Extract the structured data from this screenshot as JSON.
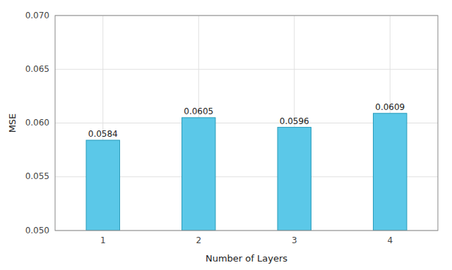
{
  "chart_data": {
    "type": "bar",
    "xlabel": "Number of Layers",
    "ylabel": "MSE",
    "categories": [
      1,
      2,
      3,
      4
    ],
    "values": [
      0.0584,
      0.0605,
      0.0596,
      0.0609
    ],
    "color": "#5BC8E8",
    "ylim": [
      0.05,
      0.07
    ],
    "yticks": [
      {
        "value": 0.05,
        "label": "0.050"
      },
      0.055,
      {
        "value": 0.06,
        "label": "0.060"
      },
      0.065,
      {
        "value": 0.07,
        "label": "0.070"
      }
    ],
    "grid": true,
    "data_labels": true
  }
}
